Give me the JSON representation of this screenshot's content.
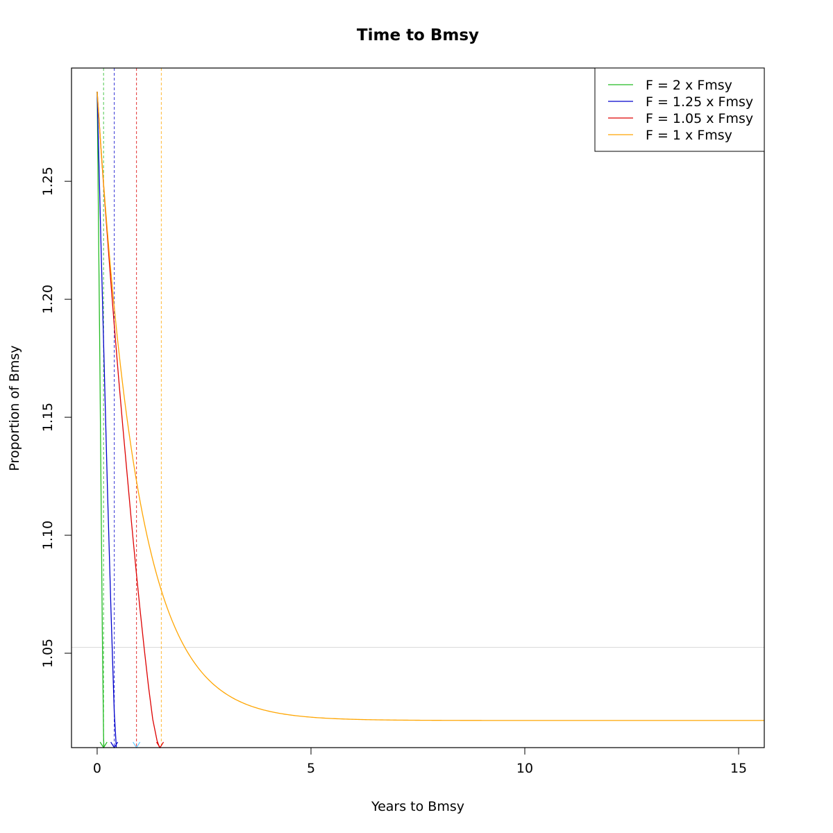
{
  "chart_data": {
    "type": "line",
    "title": "Time to Bmsy",
    "xlabel": "Years to Bmsy",
    "ylabel": "Proportion of Bmsy",
    "xlim": [
      -0.6,
      15.6
    ],
    "ylim": [
      1.01,
      1.298
    ],
    "x_ticks": [
      0,
      5,
      10,
      15
    ],
    "y_ticks": [
      1.05,
      1.1,
      1.15,
      1.2,
      1.25
    ],
    "x_tick_labels": [
      "0",
      "5",
      "10",
      "15"
    ],
    "y_tick_labels": [
      "1.05",
      "1.10",
      "1.15",
      "1.20",
      "1.25"
    ],
    "grid": false,
    "legend_position": "top-right",
    "reference_line": {
      "y": 1.0525,
      "color": "#d9d9d9"
    },
    "series": [
      {
        "name": "F = 2 x Fmsy",
        "color": "#22bb22",
        "x": [
          0,
          0.03,
          0.06,
          0.09,
          0.12,
          0.15,
          0.17
        ],
        "y": [
          1.288,
          1.235,
          1.18,
          1.12,
          1.06,
          1.015,
          1.0
        ],
        "marker_x": 0.15,
        "vline_x": 0.15
      },
      {
        "name": "F = 1.25 x Fmsy",
        "color": "#0000cc",
        "x": [
          0,
          0.08,
          0.16,
          0.24,
          0.32,
          0.4,
          0.48,
          0.53
        ],
        "y": [
          1.288,
          1.23,
          1.175,
          1.12,
          1.07,
          1.025,
          1.0,
          0.99
        ],
        "marker_x": 0.4,
        "vline_x": 0.4
      },
      {
        "name": "F = 1.05 x Fmsy",
        "color": "#dd0000",
        "x": [
          0,
          0.1,
          0.2,
          0.3,
          0.4,
          0.5,
          0.6,
          0.7,
          0.8,
          0.9,
          1.0,
          1.1,
          1.2,
          1.3,
          1.4,
          1.5
        ],
        "y": [
          1.288,
          1.261,
          1.236,
          1.212,
          1.189,
          1.167,
          1.146,
          1.126,
          1.106,
          1.087,
          1.069,
          1.052,
          1.036,
          1.022,
          1.013,
          1.008
        ],
        "marker_x": 1.47,
        "vline_x": 0.92
      },
      {
        "name": "F = 1 x Fmsy",
        "color": "#ffa500",
        "asymptote": 1.0215,
        "amplitude": 0.2665,
        "rate": 1.05,
        "x_max": 15.6,
        "marker_x": 0.92,
        "vline_x": 1.5
      }
    ],
    "marker_colors": [
      "#22bb22",
      "#0000cc",
      "#66ccff",
      "#dd0000"
    ]
  }
}
